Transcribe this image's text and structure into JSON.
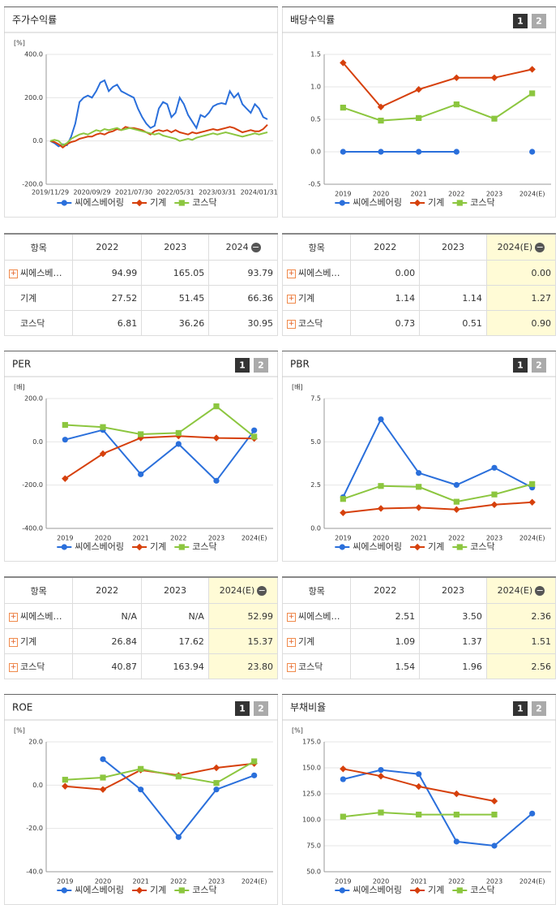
{
  "chart_data": [
    {
      "type": "line",
      "title": "주가수익률",
      "y_unit": "[%]",
      "point_markers": false,
      "grid": true,
      "categories": [
        "2019/11/29",
        null,
        null,
        null,
        null,
        null,
        null,
        null,
        null,
        null,
        "2020/09/29",
        null,
        null,
        null,
        null,
        null,
        null,
        null,
        null,
        null,
        "2021/07/30",
        null,
        null,
        null,
        null,
        null,
        null,
        null,
        null,
        null,
        "2022/05/31",
        null,
        null,
        null,
        null,
        null,
        null,
        null,
        null,
        null,
        "2023/03/31",
        null,
        null,
        null,
        null,
        null,
        null,
        null,
        null,
        null,
        "2024/01/31",
        null,
        null
      ],
      "ylim": [
        -200,
        400
      ],
      "yticks": [
        {
          "value": -200,
          "label": "-200.0"
        },
        {
          "value": 0,
          "label": "0.0"
        },
        {
          "value": 200,
          "label": "200.0"
        },
        {
          "value": 400,
          "label": "400.0"
        }
      ],
      "series": [
        {
          "name": "씨에스베어링",
          "color": "#2a6fdb",
          "marker": "circle",
          "values": [
            0,
            -10,
            -25,
            -15,
            -20,
            20,
            80,
            180,
            200,
            210,
            200,
            230,
            270,
            280,
            230,
            250,
            260,
            230,
            220,
            210,
            200,
            150,
            110,
            80,
            60,
            70,
            150,
            180,
            170,
            110,
            130,
            200,
            170,
            120,
            90,
            60,
            120,
            110,
            130,
            160,
            170,
            175,
            170,
            230,
            200,
            220,
            170,
            150,
            130,
            170,
            150,
            110,
            100
          ]
        },
        {
          "name": "기계",
          "color": "#d6400c",
          "marker": "diamond",
          "values": [
            0,
            -5,
            -15,
            -30,
            -15,
            -5,
            0,
            10,
            15,
            20,
            20,
            30,
            35,
            30,
            40,
            45,
            55,
            50,
            65,
            60,
            60,
            55,
            50,
            40,
            30,
            45,
            50,
            45,
            50,
            40,
            50,
            40,
            35,
            30,
            40,
            35,
            40,
            45,
            50,
            55,
            50,
            55,
            60,
            65,
            60,
            50,
            40,
            45,
            50,
            45,
            45,
            55,
            75
          ]
        },
        {
          "name": "코스닥",
          "color": "#8cc63f",
          "marker": "square",
          "values": [
            0,
            5,
            0,
            -20,
            -10,
            10,
            20,
            30,
            35,
            30,
            40,
            50,
            45,
            55,
            50,
            55,
            60,
            50,
            55,
            60,
            55,
            50,
            45,
            40,
            35,
            30,
            35,
            25,
            20,
            15,
            10,
            0,
            5,
            10,
            5,
            15,
            20,
            25,
            30,
            35,
            30,
            35,
            40,
            35,
            30,
            25,
            20,
            25,
            30,
            35,
            30,
            35,
            40
          ]
        }
      ]
    },
    {
      "type": "line",
      "title": "배당수익률",
      "buttons": [
        "1",
        "2"
      ],
      "y_unit": null,
      "point_markers": true,
      "grid": true,
      "categories": [
        "2019",
        "2020",
        "2021",
        "2022",
        "2023",
        "2024(E)"
      ],
      "ylim": [
        -0.5,
        1.5
      ],
      "yticks": [
        -0.5,
        {
          "value": 0,
          "label": "0.0"
        },
        0.5,
        {
          "value": 1,
          "label": "1.0"
        },
        1.5
      ],
      "series": [
        {
          "name": "씨에스베어링",
          "color": "#2a6fdb",
          "marker": "circle",
          "values": [
            0,
            0,
            0,
            0,
            null,
            0
          ]
        },
        {
          "name": "기계",
          "color": "#d6400c",
          "marker": "diamond",
          "values": [
            1.37,
            0.69,
            0.96,
            1.14,
            1.14,
            1.27
          ]
        },
        {
          "name": "코스닥",
          "color": "#8cc63f",
          "marker": "square",
          "values": [
            0.68,
            0.48,
            0.52,
            0.73,
            0.51,
            0.9
          ]
        }
      ]
    },
    {
      "type": "line",
      "title": "PER",
      "buttons": [
        "1",
        "2"
      ],
      "y_unit": "[배]",
      "point_markers": true,
      "grid": true,
      "categories": [
        "2019",
        "2020",
        "2021",
        "2022",
        "2023",
        "2024(E)"
      ],
      "ylim": [
        -400,
        200
      ],
      "yticks": [
        {
          "value": -400,
          "label": "-400.0"
        },
        {
          "value": -200,
          "label": "-200.0"
        },
        {
          "value": 0,
          "label": "0.0"
        },
        {
          "value": 200,
          "label": "200.0"
        }
      ],
      "series": [
        {
          "name": "씨에스베어링",
          "color": "#2a6fdb",
          "marker": "circle",
          "values": [
            10,
            55,
            -150,
            -10,
            -180,
            52.99
          ]
        },
        {
          "name": "기계",
          "color": "#d6400c",
          "marker": "diamond",
          "values": [
            -170,
            -55,
            18,
            26.84,
            17.62,
            15.37
          ]
        },
        {
          "name": "코스닥",
          "color": "#8cc63f",
          "marker": "square",
          "values": [
            78,
            68,
            35,
            40.87,
            163.94,
            23.8
          ]
        }
      ]
    },
    {
      "type": "line",
      "title": "PBR",
      "buttons": [
        "1",
        "2"
      ],
      "y_unit": "[배]",
      "point_markers": true,
      "grid": true,
      "categories": [
        "2019",
        "2020",
        "2021",
        "2022",
        "2023",
        "2024(E)"
      ],
      "ylim": [
        0,
        7.5
      ],
      "yticks": [
        {
          "value": 0,
          "label": "0.0"
        },
        2.5,
        {
          "value": 5,
          "label": "5.0"
        },
        7.5
      ],
      "series": [
        {
          "name": "씨에스베어링",
          "color": "#2a6fdb",
          "marker": "circle",
          "values": [
            1.8,
            6.3,
            3.2,
            2.51,
            3.5,
            2.36
          ]
        },
        {
          "name": "기계",
          "color": "#d6400c",
          "marker": "diamond",
          "values": [
            0.9,
            1.15,
            1.2,
            1.09,
            1.37,
            1.51
          ]
        },
        {
          "name": "코스닥",
          "color": "#8cc63f",
          "marker": "square",
          "values": [
            1.7,
            2.45,
            2.4,
            1.54,
            1.96,
            2.56
          ]
        }
      ]
    },
    {
      "type": "line",
      "title": "ROE",
      "buttons": [
        "1",
        "2"
      ],
      "y_unit": "[%]",
      "point_markers": true,
      "grid": true,
      "categories": [
        "2019",
        "2020",
        "2021",
        "2022",
        "2023",
        "2024(E)"
      ],
      "ylim": [
        -40,
        20
      ],
      "yticks": [
        {
          "value": -40,
          "label": "-40.0"
        },
        {
          "value": -20,
          "label": "-20.0"
        },
        {
          "value": 0,
          "label": "0.0"
        },
        {
          "value": 20,
          "label": "20.0"
        }
      ],
      "series": [
        {
          "name": "씨에스베어링",
          "color": "#2a6fdb",
          "marker": "circle",
          "values": [
            null,
            12,
            -2,
            -24,
            -2,
            4.5
          ]
        },
        {
          "name": "기계",
          "color": "#d6400c",
          "marker": "diamond",
          "values": [
            -0.5,
            -2,
            7,
            4.5,
            8,
            10
          ]
        },
        {
          "name": "코스닥",
          "color": "#8cc63f",
          "marker": "square",
          "values": [
            2.5,
            3.5,
            7.5,
            4,
            1,
            11
          ]
        }
      ]
    },
    {
      "type": "line",
      "title": "부채비율",
      "buttons": [
        "1",
        "2"
      ],
      "y_unit": "[%]",
      "point_markers": true,
      "grid": true,
      "categories": [
        "2019",
        "2020",
        "2021",
        "2022",
        "2023",
        "2024(E)"
      ],
      "ylim": [
        50,
        175
      ],
      "yticks": [
        {
          "value": 50,
          "label": "50.0"
        },
        {
          "value": 75,
          "label": "75.0"
        },
        {
          "value": 100,
          "label": "100.0"
        },
        {
          "value": 125,
          "label": "125.0"
        },
        {
          "value": 150,
          "label": "150.0"
        },
        {
          "value": 175,
          "label": "175.0"
        }
      ],
      "series": [
        {
          "name": "씨에스베어링",
          "color": "#2a6fdb",
          "marker": "circle",
          "values": [
            139,
            148,
            144,
            79,
            75,
            106
          ]
        },
        {
          "name": "기계",
          "color": "#d6400c",
          "marker": "diamond",
          "values": [
            149,
            142,
            132,
            125,
            118,
            null
          ]
        },
        {
          "name": "코스닥",
          "color": "#8cc63f",
          "marker": "square",
          "values": [
            103,
            107,
            105,
            105,
            105,
            null
          ]
        }
      ]
    }
  ],
  "tables": [
    {
      "header": [
        "항목",
        "2022",
        "2023",
        "2024"
      ],
      "highlight_last_column": false,
      "plus": [
        true,
        false,
        false
      ],
      "rows": [
        [
          "씨에스베…",
          "94.99",
          "165.05",
          "93.79"
        ],
        [
          "기계",
          "27.52",
          "51.45",
          "66.36"
        ],
        [
          "코스닥",
          "6.81",
          "36.26",
          "30.95"
        ]
      ]
    },
    {
      "header": [
        "항목",
        "2022",
        "2023",
        "2024(E)"
      ],
      "highlight_last_column": true,
      "plus": [
        true,
        true,
        true
      ],
      "rows": [
        [
          "씨에스베…",
          "0.00",
          null,
          "0.00"
        ],
        [
          "기계",
          "1.14",
          "1.14",
          "1.27"
        ],
        [
          "코스닥",
          "0.73",
          "0.51",
          "0.90"
        ]
      ]
    },
    {
      "header": [
        "항목",
        "2022",
        "2023",
        "2024(E)"
      ],
      "highlight_last_column": true,
      "plus": [
        true,
        true,
        true
      ],
      "rows": [
        [
          "씨에스베…",
          "N/A",
          "N/A",
          "52.99"
        ],
        [
          "기계",
          "26.84",
          "17.62",
          "15.37"
        ],
        [
          "코스닥",
          "40.87",
          "163.94",
          "23.80"
        ]
      ]
    },
    {
      "header": [
        "항목",
        "2022",
        "2023",
        "2024(E)"
      ],
      "highlight_last_column": true,
      "plus": [
        true,
        true,
        true
      ],
      "rows": [
        [
          "씨에스베…",
          "2.51",
          "3.50",
          "2.36"
        ],
        [
          "기계",
          "1.09",
          "1.37",
          "1.51"
        ],
        [
          "코스닥",
          "1.54",
          "1.96",
          "2.56"
        ]
      ]
    }
  ]
}
